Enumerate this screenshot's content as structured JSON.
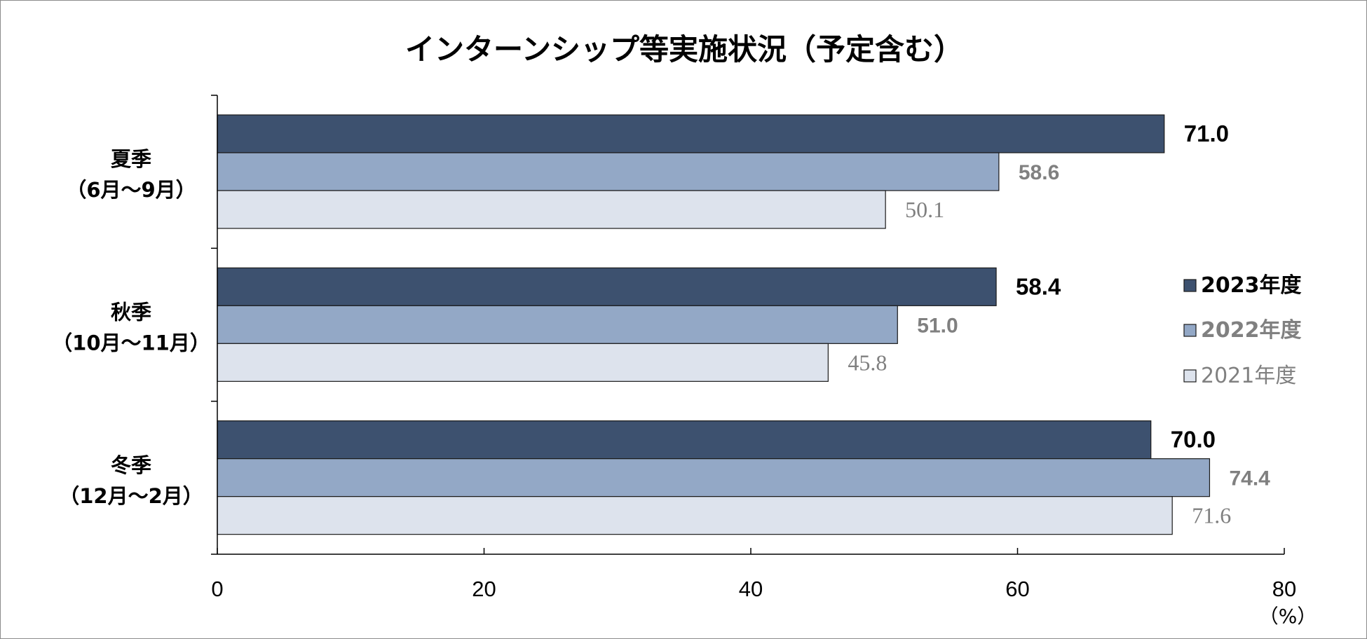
{
  "chart_data": {
    "type": "bar",
    "orientation": "horizontal",
    "title": "インターンシップ等実施状況（予定含む）",
    "categories": [
      {
        "name": "夏季",
        "period": "（6月～9月）"
      },
      {
        "name": "秋季",
        "period": "（10月～11月）"
      },
      {
        "name": "冬季",
        "period": "（12月～2月）"
      }
    ],
    "series": [
      {
        "name": "2023年度",
        "color": "#3d516f",
        "values": [
          71.0,
          58.4,
          70.0
        ],
        "labels": [
          "71.0",
          "58.4",
          "70.0"
        ]
      },
      {
        "name": "2022年度",
        "color": "#93a8c6",
        "values": [
          58.6,
          51.0,
          74.4
        ],
        "labels": [
          "58.6",
          "51.0",
          "74.4"
        ]
      },
      {
        "name": "2021年度",
        "color": "#dde3ed",
        "values": [
          50.1,
          45.8,
          71.6
        ],
        "labels": [
          "50.1",
          "45.8",
          "71.6"
        ]
      }
    ],
    "xlim": [
      0,
      80
    ],
    "xticks": [
      0,
      20,
      40,
      60,
      80
    ],
    "xtick_labels": [
      "0",
      "20",
      "40",
      "60",
      "80"
    ],
    "xunit": "（%）",
    "legend_position": "right",
    "grid": false
  }
}
